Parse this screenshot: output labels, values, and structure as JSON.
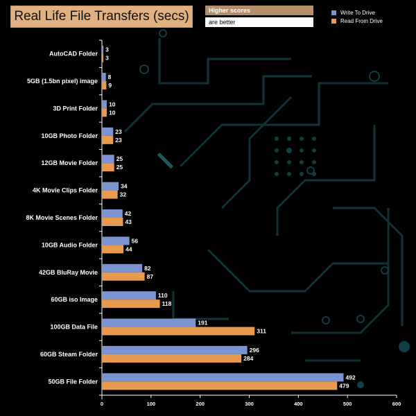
{
  "title_box": {
    "title": "Real Life File Transfers (secs)"
  },
  "note": {
    "line1": "Higher scores",
    "line2": "are better"
  },
  "colors": {
    "write": "#7b93d1",
    "read": "#e89a4f",
    "accent": "#e0b07f"
  },
  "chart_data": {
    "type": "bar",
    "orientation": "horizontal",
    "title": "Real Life File Transfers (secs)",
    "categories": [
      "AutoCAD Folder",
      "5GB (1.5bn pixel) image",
      "3D Print Folder",
      "10GB Photo Folder",
      "12GB Movie Folder",
      "4K Movie Clips Folder",
      "8K Movie Scenes Folder",
      "10GB Audio Folder",
      "42GB BluRay Movie",
      "60GB iso Image",
      "100GB Data File",
      "60GB Steam Folder",
      "50GB File Folder"
    ],
    "series": [
      {
        "name": "Write To  Drive",
        "values": [
          3,
          8,
          10,
          23,
          25,
          34,
          42,
          56,
          82,
          110,
          191,
          296,
          492
        ]
      },
      {
        "name": "Read From  Drive",
        "values": [
          3,
          9,
          10,
          23,
          25,
          32,
          43,
          44,
          87,
          118,
          311,
          284,
          479
        ]
      }
    ],
    "xlim": [
      0,
      600
    ],
    "xticks": [
      0,
      100,
      200,
      300,
      400,
      500,
      600
    ],
    "legend_position": "top-right"
  }
}
